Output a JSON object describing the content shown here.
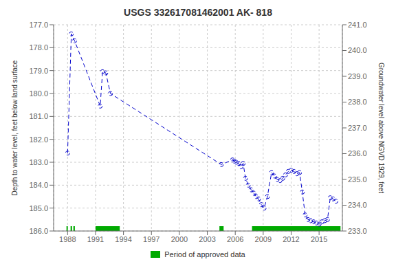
{
  "chart_data": {
    "type": "line",
    "title": "USGS 332617081462001 AK- 818",
    "y_label": "Depth to water level, feet below land surface",
    "y2_label": "Groundwater level above NGVD 1929, feet",
    "x": [
      1988.0,
      1988.4,
      1988.75,
      1991.5,
      1991.75,
      1992.1,
      1992.6,
      2004.5,
      2005.7,
      2005.9,
      2006.1,
      2006.35,
      2006.6,
      2006.85,
      2007.1,
      2007.4,
      2007.7,
      2008.0,
      2008.25,
      2008.5,
      2008.8,
      2009.1,
      2009.45,
      2009.9,
      2010.2,
      2010.5,
      2010.8,
      2011.1,
      2011.4,
      2011.7,
      2012.0,
      2012.3,
      2012.6,
      2012.9,
      2013.2,
      2013.5,
      2013.8,
      2014.1,
      2014.4,
      2014.7,
      2015.0,
      2015.3,
      2015.6,
      2015.9,
      2016.2,
      2016.5,
      2016.8
    ],
    "values": [
      182.6,
      177.4,
      177.7,
      180.55,
      179.05,
      179.1,
      180.0,
      183.1,
      182.9,
      182.95,
      183.0,
      183.05,
      183.2,
      183.05,
      183.7,
      184.0,
      184.2,
      184.35,
      184.5,
      184.6,
      184.85,
      185.0,
      184.5,
      183.45,
      183.6,
      183.75,
      183.8,
      183.7,
      183.55,
      183.4,
      183.35,
      183.4,
      183.5,
      183.45,
      184.3,
      185.3,
      185.5,
      185.55,
      185.6,
      185.65,
      185.7,
      185.6,
      185.55,
      185.5,
      184.55,
      184.6,
      184.7
    ],
    "color": "#0000cc",
    "marker": "circle",
    "line_style": "dashed",
    "xlim": [
      1986.5,
      2017.5
    ],
    "xticks": [
      1988,
      1991,
      1994,
      1997,
      2000,
      2003,
      2006,
      2009,
      2012,
      2015
    ],
    "ylim": [
      186.0,
      177.0
    ],
    "yticks": [
      {
        "value": 177.0,
        "label": "177.0"
      },
      {
        "value": 178.0,
        "label": "178.0"
      },
      {
        "value": 179.0,
        "label": "179.0"
      },
      {
        "value": 180.0,
        "label": "180.0"
      },
      {
        "value": 181.0,
        "label": "181.0"
      },
      {
        "value": 182.0,
        "label": "182.0"
      },
      {
        "value": 183.0,
        "label": "183.0"
      },
      {
        "value": 184.0,
        "label": "184.0"
      },
      {
        "value": 185.0,
        "label": "185.0"
      },
      {
        "value": 186.0,
        "label": "186.0"
      }
    ],
    "y2lim": [
      233.0,
      241.0
    ],
    "y2ticks": [
      {
        "value": 233.0,
        "label": "233.0"
      },
      {
        "value": 234.0,
        "label": "234.0"
      },
      {
        "value": 235.0,
        "label": "235.0"
      },
      {
        "value": 236.0,
        "label": "236.0"
      },
      {
        "value": 237.0,
        "label": "237.0"
      },
      {
        "value": 238.0,
        "label": "238.0"
      },
      {
        "value": 239.0,
        "label": "239.0"
      },
      {
        "value": 240.0,
        "label": "240.0"
      },
      {
        "value": 241.0,
        "label": "241.0"
      }
    ],
    "grid": true,
    "legend": "bottom",
    "approved_periods": {
      "name": "Period of approved data",
      "color": "#00aa00",
      "ranges": [
        [
          1987.88,
          1988.02
        ],
        [
          1988.32,
          1988.48
        ],
        [
          1988.62,
          1988.78
        ],
        [
          1991.0,
          1993.6
        ],
        [
          2004.3,
          2004.75
        ],
        [
          2007.8,
          2017.3
        ]
      ]
    }
  }
}
